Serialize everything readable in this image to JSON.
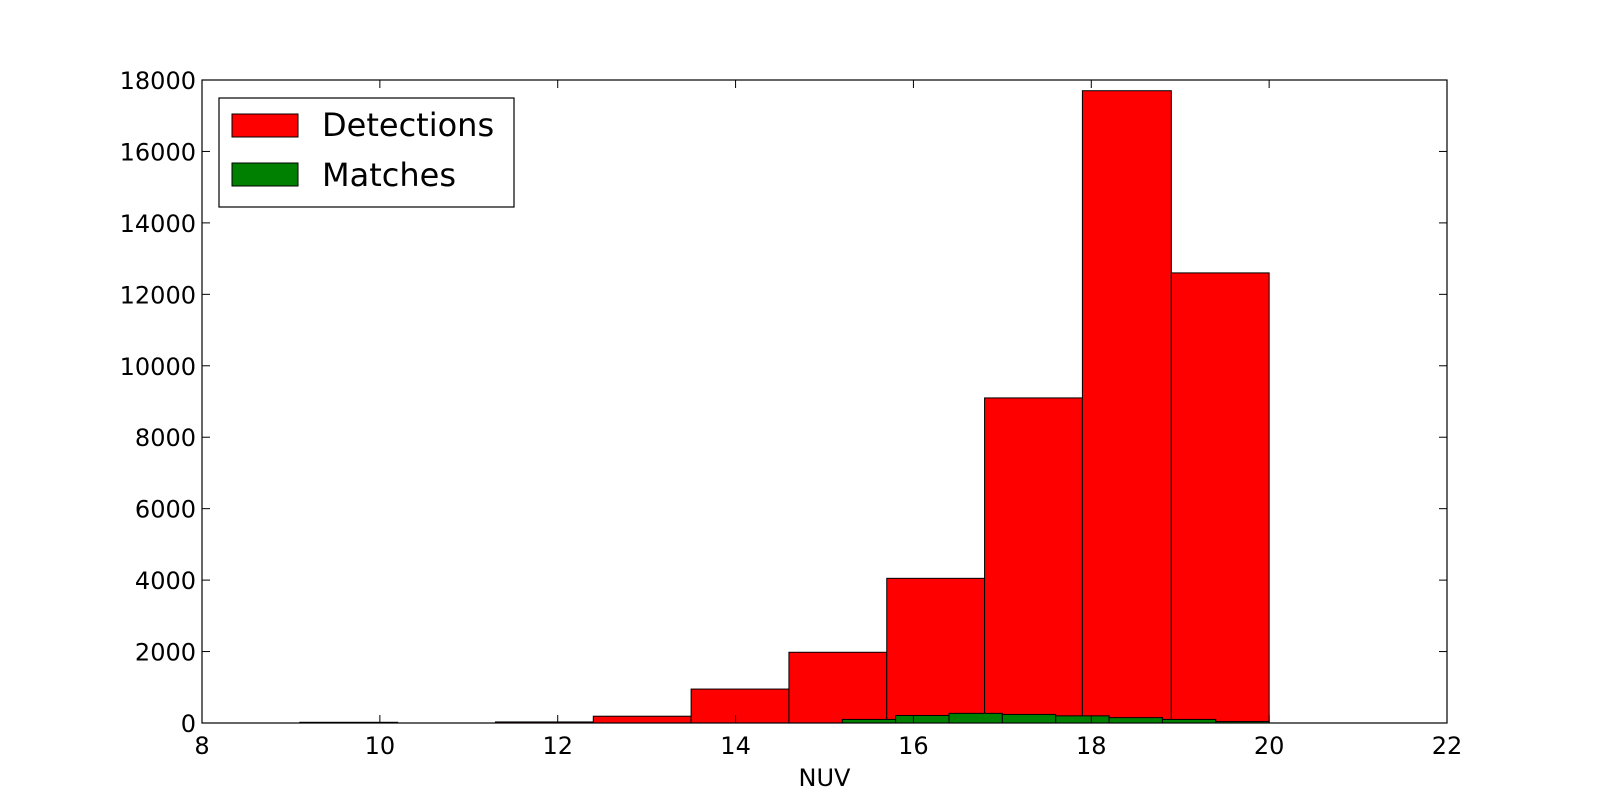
{
  "chart_data": {
    "type": "bar",
    "title": "",
    "xlabel": "NUV",
    "ylabel": "",
    "xlim": [
      8,
      22
    ],
    "ylim": [
      0,
      18000
    ],
    "xticks": [
      8,
      10,
      12,
      14,
      16,
      18,
      20,
      22
    ],
    "yticks": [
      0,
      2000,
      4000,
      6000,
      8000,
      10000,
      12000,
      14000,
      16000,
      18000
    ],
    "grid": false,
    "legend_position": "top-left",
    "series": [
      {
        "name": "Detections",
        "color": "#ff0000",
        "bins": [
          {
            "x0": 9.1,
            "x1": 10.2,
            "count": 20
          },
          {
            "x0": 10.2,
            "x1": 11.3,
            "count": 0
          },
          {
            "x0": 11.3,
            "x1": 12.4,
            "count": 30
          },
          {
            "x0": 12.4,
            "x1": 13.5,
            "count": 190
          },
          {
            "x0": 13.5,
            "x1": 14.6,
            "count": 950
          },
          {
            "x0": 14.6,
            "x1": 15.7,
            "count": 1980
          },
          {
            "x0": 15.7,
            "x1": 16.8,
            "count": 4050
          },
          {
            "x0": 16.8,
            "x1": 17.9,
            "count": 9100
          },
          {
            "x0": 17.9,
            "x1": 18.9,
            "count": 17700
          },
          {
            "x0": 18.9,
            "x1": 20.0,
            "count": 12600
          }
        ]
      },
      {
        "name": "Matches",
        "color": "#008000",
        "bins": [
          {
            "x0": 15.2,
            "x1": 15.8,
            "count": 100
          },
          {
            "x0": 15.8,
            "x1": 16.4,
            "count": 210
          },
          {
            "x0": 16.4,
            "x1": 17.0,
            "count": 270
          },
          {
            "x0": 17.0,
            "x1": 17.6,
            "count": 240
          },
          {
            "x0": 17.6,
            "x1": 18.2,
            "count": 200
          },
          {
            "x0": 18.2,
            "x1": 18.8,
            "count": 150
          },
          {
            "x0": 18.8,
            "x1": 19.4,
            "count": 100
          },
          {
            "x0": 19.4,
            "x1": 20.0,
            "count": 40
          }
        ]
      }
    ]
  }
}
